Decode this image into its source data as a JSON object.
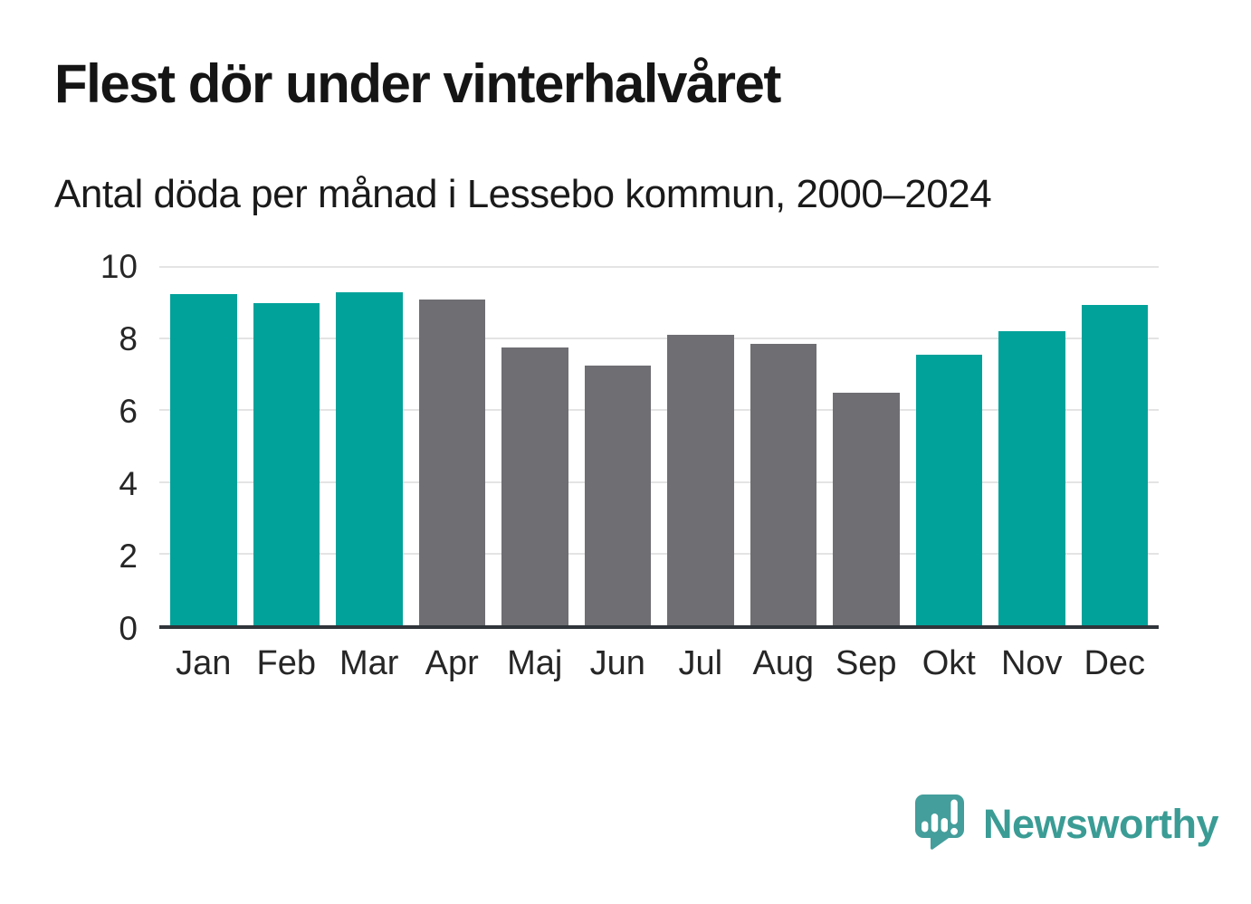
{
  "page": {
    "background": "#ffffff"
  },
  "chart_data": {
    "type": "bar",
    "title": "Flest dör under vinterhalvåret",
    "subtitle": "Antal döda per månad i Lessebo kommun, 2000–2024",
    "categories": [
      "Jan",
      "Feb",
      "Mar",
      "Apr",
      "Maj",
      "Jun",
      "Jul",
      "Aug",
      "Sep",
      "Okt",
      "Nov",
      "Dec"
    ],
    "values": [
      9.25,
      9.0,
      9.3,
      9.1,
      7.75,
      7.25,
      8.1,
      7.85,
      6.5,
      7.55,
      8.2,
      8.95
    ],
    "bar_colors": [
      "teal",
      "teal",
      "teal",
      "gray",
      "gray",
      "gray",
      "gray",
      "gray",
      "gray",
      "teal",
      "teal",
      "teal"
    ],
    "palette": {
      "teal": "#00a29a",
      "gray": "#6e6e73"
    },
    "xlabel": "",
    "ylabel": "",
    "ylim": [
      0,
      10
    ],
    "yticks": [
      0,
      2,
      4,
      6,
      8,
      10
    ],
    "grid": true,
    "legend": false,
    "axis_line_color": "#2f353a",
    "gridline_color": "#e4e4e4"
  },
  "footer": {
    "brand": "Newsworthy",
    "brand_color": "#3a9c95",
    "logo_icon": "newsworthy-speech-bubble-bar-chart-icon"
  }
}
